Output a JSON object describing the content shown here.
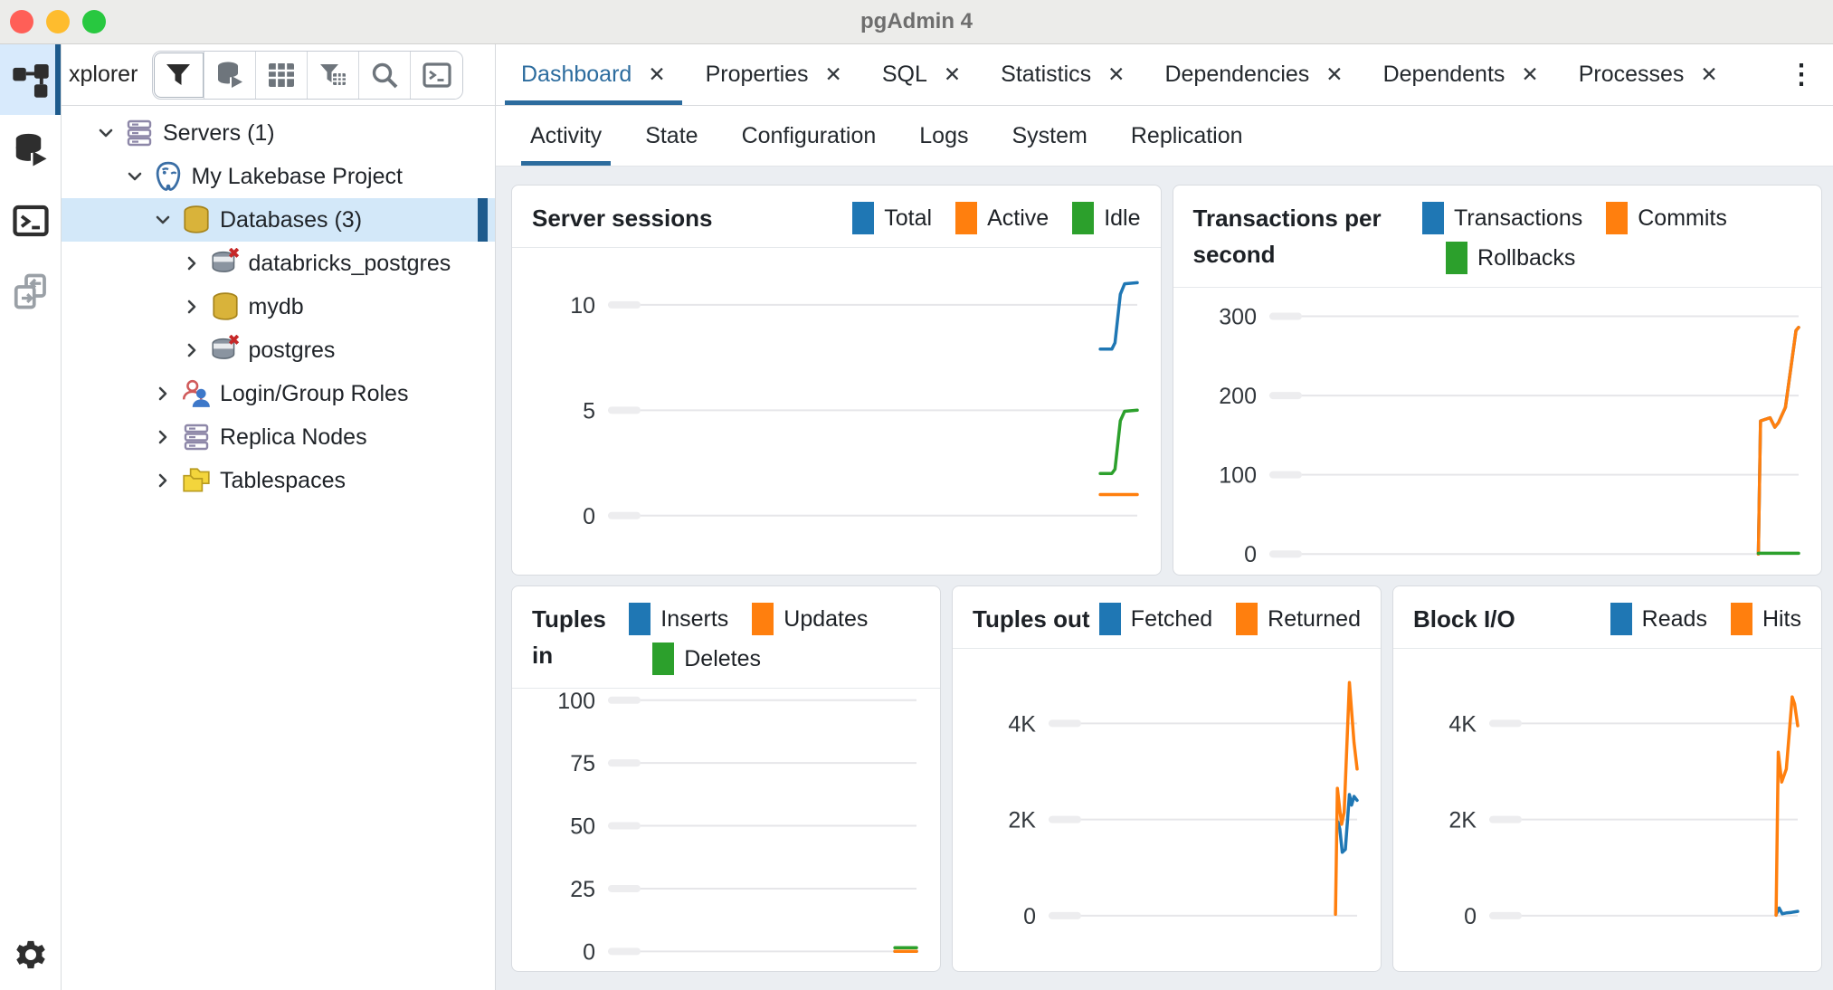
{
  "window": {
    "title": "pgAdmin 4"
  },
  "colors": {
    "accent": "#2c6c9e",
    "selection_bar": "#1e5b8d",
    "selection_bg": "#d3e8f9",
    "series_blue": "#1f77b4",
    "series_orange": "#ff7f0e",
    "series_green": "#2ca02c"
  },
  "activity_bar": {
    "items": [
      {
        "icon": "object-explorer",
        "active": true
      },
      {
        "icon": "query-tool",
        "active": false
      },
      {
        "icon": "psql-terminal",
        "active": false
      },
      {
        "icon": "schema-diff",
        "active": false
      }
    ],
    "bottom_icon": "gear"
  },
  "sidebar": {
    "header_label": "xplorer",
    "toolbar_icons": [
      "filter",
      "query-tool-sm",
      "view-data",
      "filtered-rows",
      "search",
      "psql-sm"
    ],
    "tree": [
      {
        "label": "Servers (1)",
        "level": 0,
        "chevron": "expanded",
        "icon": "server-group",
        "selected": false
      },
      {
        "label": "My Lakebase Project",
        "level": 1,
        "chevron": "expanded",
        "icon": "postgres-server",
        "selected": false
      },
      {
        "label": "Databases (3)",
        "level": 2,
        "chevron": "expanded",
        "icon": "database-gold",
        "selected": true
      },
      {
        "label": "databricks_postgres",
        "level": 3,
        "chevron": "collapsed",
        "icon": "database-disconnected",
        "selected": false
      },
      {
        "label": "mydb",
        "level": 3,
        "chevron": "collapsed",
        "icon": "database-gold",
        "selected": false
      },
      {
        "label": "postgres",
        "level": 3,
        "chevron": "collapsed",
        "icon": "database-disconnected",
        "selected": false
      },
      {
        "label": "Login/Group Roles",
        "level": 2,
        "chevron": "collapsed",
        "icon": "roles",
        "selected": false
      },
      {
        "label": "Replica Nodes",
        "level": 2,
        "chevron": "collapsed",
        "icon": "server-group",
        "selected": false
      },
      {
        "label": "Tablespaces",
        "level": 2,
        "chevron": "collapsed",
        "icon": "tablespaces",
        "selected": false
      }
    ]
  },
  "tabs": [
    {
      "label": "Dashboard",
      "active": true
    },
    {
      "label": "Properties",
      "active": false
    },
    {
      "label": "SQL",
      "active": false
    },
    {
      "label": "Statistics",
      "active": false
    },
    {
      "label": "Dependencies",
      "active": false
    },
    {
      "label": "Dependents",
      "active": false
    },
    {
      "label": "Processes",
      "active": false
    }
  ],
  "tab_close_glyph": "✕",
  "overflow_menu_glyph": "⋮",
  "subtabs": [
    {
      "label": "Activity",
      "active": true
    },
    {
      "label": "State",
      "active": false
    },
    {
      "label": "Configuration",
      "active": false
    },
    {
      "label": "Logs",
      "active": false
    },
    {
      "label": "System",
      "active": false
    },
    {
      "label": "Replication",
      "active": false
    }
  ],
  "chart_data": [
    {
      "id": "server-sessions",
      "row": 0,
      "type": "line",
      "title": "Server sessions",
      "legend_position": "right",
      "grid": true,
      "ylim": [
        -2.8,
        12.7
      ],
      "yticks": [
        {
          "value": 0,
          "label": "0"
        },
        {
          "value": 5,
          "label": "5"
        },
        {
          "value": 10,
          "label": "10"
        }
      ],
      "series": [
        {
          "name": "Total",
          "color": "#1f77b4",
          "points": [
            [
              0.93,
              7.9
            ],
            [
              0.952,
              7.9
            ],
            [
              0.958,
              8.2
            ],
            [
              0.968,
              10.5
            ],
            [
              0.976,
              11.0
            ],
            [
              1.0,
              11.05
            ]
          ]
        },
        {
          "name": "Active",
          "color": "#ff7f0e",
          "points": [
            [
              0.93,
              1.0
            ],
            [
              1.0,
              1.0
            ]
          ]
        },
        {
          "name": "Idle",
          "color": "#2ca02c",
          "points": [
            [
              0.93,
              2.0
            ],
            [
              0.952,
              2.0
            ],
            [
              0.958,
              2.2
            ],
            [
              0.968,
              4.5
            ],
            [
              0.976,
              4.95
            ],
            [
              1.0,
              5.0
            ]
          ]
        }
      ]
    },
    {
      "id": "transactions-per-second",
      "row": 0,
      "type": "line",
      "title": "Transactions per second",
      "legend_position": "right",
      "grid": true,
      "ylim": [
        -26,
        336
      ],
      "yticks": [
        {
          "value": 0,
          "label": "0"
        },
        {
          "value": 100,
          "label": "100"
        },
        {
          "value": 200,
          "label": "200"
        },
        {
          "value": 300,
          "label": "300"
        }
      ],
      "series": [
        {
          "name": "Transactions",
          "color": "#1f77b4",
          "points": [
            [
              0.924,
              0
            ],
            [
              0.928,
              168
            ],
            [
              0.946,
              172
            ],
            [
              0.955,
              160
            ],
            [
              0.962,
              166
            ],
            [
              0.975,
              185
            ],
            [
              0.995,
              282
            ],
            [
              1.0,
              286
            ]
          ]
        },
        {
          "name": "Commits",
          "color": "#ff7f0e",
          "points": [
            [
              0.924,
              0
            ],
            [
              0.928,
              168
            ],
            [
              0.946,
              172
            ],
            [
              0.955,
              160
            ],
            [
              0.962,
              166
            ],
            [
              0.975,
              185
            ],
            [
              0.995,
              282
            ],
            [
              1.0,
              286
            ]
          ]
        },
        {
          "name": "Rollbacks",
          "color": "#2ca02c",
          "points": [
            [
              0.924,
              1
            ],
            [
              1.0,
              1
            ]
          ]
        }
      ]
    },
    {
      "id": "tuples-in",
      "row": 1,
      "type": "line",
      "title": "Tuples in",
      "legend_position": "right",
      "grid": true,
      "ylim": [
        -7.8,
        104.6
      ],
      "yticks": [
        {
          "value": 0,
          "label": "0"
        },
        {
          "value": 25,
          "label": "25"
        },
        {
          "value": 50,
          "label": "50"
        },
        {
          "value": 75,
          "label": "75"
        },
        {
          "value": 100,
          "label": "100"
        }
      ],
      "series": [
        {
          "name": "Inserts",
          "color": "#1f77b4",
          "points": [
            [
              0.93,
              0
            ],
            [
              1.0,
              0
            ]
          ]
        },
        {
          "name": "Updates",
          "color": "#ff7f0e",
          "points": [
            [
              0.93,
              0
            ],
            [
              1.0,
              0
            ]
          ]
        },
        {
          "name": "Deletes",
          "color": "#2ca02c",
          "points": [
            [
              0.93,
              1.5
            ],
            [
              1.0,
              1.5
            ]
          ]
        }
      ]
    },
    {
      "id": "tuples-out",
      "row": 1,
      "type": "line",
      "title": "Tuples out",
      "legend_position": "right",
      "grid": true,
      "ylim": [
        -1150,
        5550
      ],
      "yticks": [
        {
          "value": 0,
          "label": "0"
        },
        {
          "value": 2000,
          "label": "2K"
        },
        {
          "value": 4000,
          "label": "4K"
        }
      ],
      "series": [
        {
          "name": "Fetched",
          "color": "#1f77b4",
          "points": [
            [
              0.938,
              1950
            ],
            [
              0.944,
              1800
            ],
            [
              0.952,
              1320
            ],
            [
              0.962,
              1380
            ],
            [
              0.975,
              2520
            ],
            [
              0.982,
              2300
            ],
            [
              0.99,
              2480
            ],
            [
              1.0,
              2400
            ]
          ]
        },
        {
          "name": "Returned",
          "color": "#ff7f0e",
          "points": [
            [
              0.93,
              30
            ],
            [
              0.936,
              2650
            ],
            [
              0.944,
              2200
            ],
            [
              0.95,
              1900
            ],
            [
              0.958,
              2150
            ],
            [
              0.975,
              4850
            ],
            [
              0.99,
              3600
            ],
            [
              1.0,
              3050
            ]
          ]
        }
      ]
    },
    {
      "id": "block-io",
      "row": 1,
      "type": "line",
      "title": "Block I/O",
      "legend_position": "right",
      "grid": true,
      "ylim": [
        -1150,
        5550
      ],
      "yticks": [
        {
          "value": 0,
          "label": "0"
        },
        {
          "value": 2000,
          "label": "2K"
        },
        {
          "value": 4000,
          "label": "4K"
        }
      ],
      "series": [
        {
          "name": "Reads",
          "color": "#1f77b4",
          "points": [
            [
              0.93,
              20
            ],
            [
              0.94,
              160
            ],
            [
              0.95,
              40
            ],
            [
              0.965,
              60
            ],
            [
              0.98,
              70
            ],
            [
              1.0,
              90
            ]
          ]
        },
        {
          "name": "Hits",
          "color": "#ff7f0e",
          "points": [
            [
              0.93,
              10
            ],
            [
              0.937,
              3400
            ],
            [
              0.948,
              2780
            ],
            [
              0.963,
              3050
            ],
            [
              0.982,
              4550
            ],
            [
              0.99,
              4400
            ],
            [
              1.0,
              3950
            ]
          ]
        }
      ]
    }
  ]
}
